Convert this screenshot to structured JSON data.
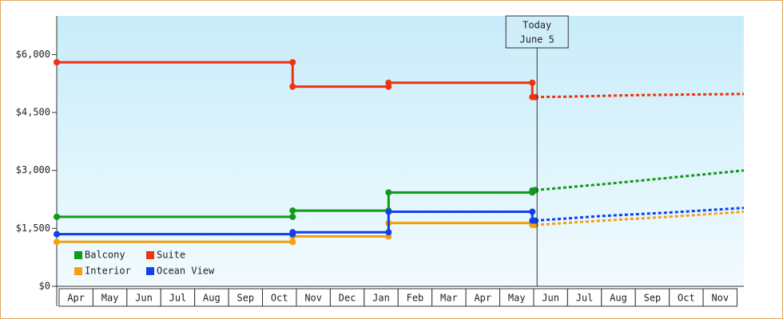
{
  "chart_data": {
    "type": "line",
    "categories": [
      "Apr",
      "May",
      "Jun",
      "Jul",
      "Aug",
      "Sep",
      "Oct",
      "Nov",
      "Dec",
      "Jan",
      "Feb",
      "Mar",
      "Apr",
      "May",
      "Jun",
      "Jul",
      "Aug",
      "Sep",
      "Oct",
      "Nov"
    ],
    "xlim": [
      -0.07,
      20.2
    ],
    "ylim": [
      0,
      7000
    ],
    "yticks": [
      {
        "value": 0,
        "label": "$0"
      },
      {
        "value": 1500,
        "label": "$1,500"
      },
      {
        "value": 3000,
        "label": "$3,000"
      },
      {
        "value": 4500,
        "label": "$4,500"
      },
      {
        "value": 6000,
        "label": "$6,000"
      }
    ],
    "annotation": {
      "x": 14.1,
      "lines": [
        "Today",
        "June 5"
      ]
    },
    "legend": "lower left",
    "series": [
      {
        "name": "Balcony",
        "color": "#11991a",
        "x": [
          -0.07,
          6.89,
          6.89,
          9.72,
          9.72,
          13.96,
          13.96,
          14.05
        ],
        "values": [
          1800,
          1800,
          1960,
          1960,
          2430,
          2430,
          2480,
          2490
        ],
        "forecast": {
          "x": [
            14.05,
            16,
            18,
            20.2
          ],
          "values": [
            2490,
            2640,
            2810,
            3000
          ]
        }
      },
      {
        "name": "Suite",
        "color": "#ee3311",
        "x": [
          -0.07,
          6.89,
          6.89,
          9.72,
          9.72,
          13.96,
          13.96,
          14.05
        ],
        "values": [
          5800,
          5800,
          5170,
          5170,
          5270,
          5270,
          4900,
          4900
        ],
        "forecast": {
          "x": [
            14.05,
            15,
            17,
            20.2
          ],
          "values": [
            4900,
            4910,
            4950,
            4980
          ]
        }
      },
      {
        "name": "Interior",
        "color": "#f5a010",
        "x": [
          -0.07,
          6.89,
          6.89,
          9.72,
          9.72,
          13.96,
          13.96,
          14.05
        ],
        "values": [
          1150,
          1150,
          1290,
          1290,
          1640,
          1640,
          1590,
          1590
        ],
        "forecast": {
          "x": [
            14.05,
            16,
            18,
            20.2
          ],
          "values": [
            1590,
            1700,
            1800,
            1930
          ]
        }
      },
      {
        "name": "Ocean View",
        "color": "#1040ee",
        "x": [
          -0.07,
          6.89,
          6.89,
          9.72,
          9.72,
          13.96,
          13.96,
          14.05
        ],
        "values": [
          1350,
          1350,
          1400,
          1400,
          1930,
          1930,
          1700,
          1700
        ],
        "forecast": {
          "x": [
            14.05,
            16,
            18,
            20.2
          ],
          "values": [
            1700,
            1820,
            1910,
            2030
          ]
        }
      }
    ]
  }
}
